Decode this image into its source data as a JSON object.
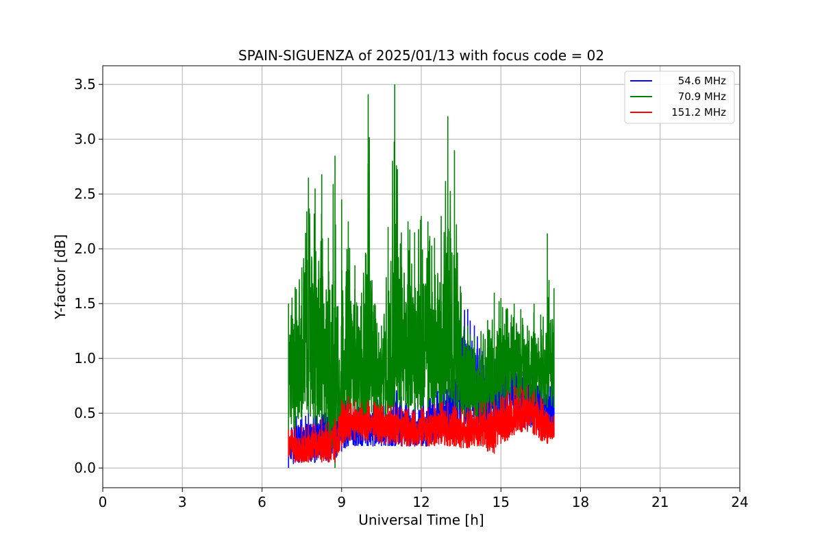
{
  "chart_data": {
    "type": "line",
    "title": "SPAIN-SIGUENZA of 2025/01/13 with focus code = 02",
    "xlabel": "Universal Time [h]",
    "ylabel": "Y-factor [dB]",
    "xlim": [
      0,
      24
    ],
    "ylim": [
      -0.18,
      3.67
    ],
    "xticks": [
      0,
      3,
      6,
      9,
      12,
      15,
      18,
      21,
      24
    ],
    "yticks": [
      0.0,
      0.5,
      1.0,
      1.5,
      2.0,
      2.5,
      3.0,
      3.5
    ],
    "xtick_labels": [
      "0",
      "3",
      "6",
      "9",
      "12",
      "15",
      "18",
      "21",
      "24"
    ],
    "ytick_labels": [
      "0.0",
      "0.5",
      "1.0",
      "1.5",
      "2.0",
      "2.5",
      "3.0",
      "3.5"
    ],
    "grid": true,
    "legend_position": "top-right",
    "series": [
      {
        "name": "54.6 MHz",
        "color": "#0000ff",
        "x": [
          7.0,
          7.25,
          7.5,
          7.75,
          8.0,
          8.25,
          8.5,
          8.75,
          9.0,
          9.25,
          9.5,
          9.75,
          10.0,
          10.25,
          10.5,
          10.75,
          11.0,
          11.25,
          11.5,
          11.75,
          12.0,
          12.25,
          12.5,
          12.75,
          13.0,
          13.25,
          13.5,
          13.75,
          14.0,
          14.25,
          14.5,
          14.75,
          15.0,
          15.25,
          15.5,
          15.75,
          16.0,
          16.25,
          16.5,
          16.75,
          17.0
        ],
        "y": [
          0.2,
          0.25,
          0.25,
          0.3,
          0.3,
          0.35,
          0.35,
          0.3,
          0.4,
          0.4,
          0.35,
          0.35,
          0.35,
          0.4,
          0.35,
          0.35,
          0.45,
          0.4,
          0.4,
          0.35,
          0.4,
          0.4,
          0.45,
          0.45,
          0.5,
          0.6,
          0.8,
          0.75,
          0.7,
          0.6,
          0.55,
          0.6,
          0.65,
          0.7,
          0.7,
          0.7,
          0.7,
          0.65,
          0.6,
          0.55,
          0.5
        ],
        "min": [
          0.0,
          0.05,
          0.05,
          0.05,
          0.05,
          0.1,
          0.05,
          0.05,
          0.15,
          0.2,
          0.2,
          0.2,
          0.2,
          0.2,
          0.2,
          0.2,
          0.2,
          0.2,
          0.2,
          0.2,
          0.2,
          0.2,
          0.25,
          0.25,
          0.25,
          0.25,
          0.3,
          0.3,
          0.3,
          0.3,
          0.3,
          0.3,
          0.35,
          0.35,
          0.35,
          0.35,
          0.35,
          0.35,
          0.3,
          0.3,
          0.3
        ],
        "max": [
          0.3,
          0.55,
          0.45,
          0.5,
          0.5,
          0.65,
          0.55,
          0.45,
          0.7,
          0.6,
          0.6,
          0.55,
          0.65,
          0.65,
          0.6,
          0.6,
          0.75,
          0.65,
          0.6,
          0.6,
          0.65,
          0.65,
          0.75,
          0.7,
          0.85,
          1.2,
          1.58,
          1.45,
          1.3,
          1.1,
          0.95,
          1.0,
          1.05,
          1.08,
          1.0,
          1.0,
          0.95,
          0.9,
          0.85,
          0.8,
          1.3
        ]
      },
      {
        "name": "70.9 MHz",
        "color": "#008000",
        "x": [
          7.0,
          7.25,
          7.5,
          7.75,
          8.0,
          8.25,
          8.5,
          8.75,
          9.0,
          9.25,
          9.5,
          9.75,
          10.0,
          10.25,
          10.5,
          10.75,
          11.0,
          11.25,
          11.5,
          11.75,
          12.0,
          12.25,
          12.5,
          12.75,
          13.0,
          13.25,
          13.5,
          13.75,
          14.0,
          14.25,
          14.5,
          14.75,
          15.0,
          15.25,
          15.5,
          15.75,
          16.0,
          16.25,
          16.5,
          16.75,
          17.0
        ],
        "y": [
          0.9,
          1.0,
          1.1,
          1.2,
          1.0,
          1.0,
          0.8,
          0.7,
          0.8,
          0.9,
          0.9,
          0.85,
          0.9,
          0.9,
          0.9,
          0.85,
          1.1,
          1.0,
          1.1,
          1.0,
          1.05,
          1.0,
          1.0,
          1.0,
          1.05,
          0.9,
          0.85,
          0.8,
          0.75,
          0.75,
          0.8,
          0.85,
          0.95,
          1.0,
          1.0,
          0.95,
          0.95,
          0.95,
          0.9,
          0.9,
          0.9
        ],
        "min": [
          0.3,
          0.35,
          0.45,
          0.5,
          0.4,
          0.3,
          0.2,
          0.0,
          0.3,
          0.45,
          0.45,
          0.4,
          0.45,
          0.45,
          0.45,
          0.4,
          0.55,
          0.55,
          0.55,
          0.5,
          0.55,
          0.55,
          0.55,
          0.5,
          0.6,
          0.5,
          0.5,
          0.45,
          0.45,
          0.45,
          0.5,
          0.5,
          0.5,
          0.6,
          0.6,
          0.55,
          0.55,
          0.55,
          0.55,
          0.55,
          0.55
        ],
        "max": [
          1.5,
          1.65,
          1.83,
          2.65,
          2.55,
          2.68,
          2.1,
          2.85,
          2.45,
          2.25,
          1.85,
          1.6,
          3.41,
          1.5,
          1.3,
          2.2,
          3.5,
          2.15,
          2.25,
          2.15,
          2.3,
          2.25,
          2.1,
          2.3,
          3.21,
          2.9,
          1.6,
          1.3,
          1.2,
          1.25,
          1.35,
          1.6,
          1.55,
          1.45,
          1.5,
          1.45,
          1.3,
          1.5,
          1.4,
          2.14,
          1.64
        ]
      },
      {
        "name": "151.2 MHz",
        "color": "#ff0000",
        "x": [
          7.0,
          7.25,
          7.5,
          7.75,
          8.0,
          8.25,
          8.5,
          8.75,
          9.0,
          9.25,
          9.5,
          9.75,
          10.0,
          10.25,
          10.5,
          10.75,
          11.0,
          11.25,
          11.5,
          11.75,
          12.0,
          12.25,
          12.5,
          12.75,
          13.0,
          13.25,
          13.5,
          13.75,
          14.0,
          14.25,
          14.5,
          14.75,
          15.0,
          15.25,
          15.5,
          15.75,
          16.0,
          16.25,
          16.5,
          16.75,
          17.0
        ],
        "y": [
          0.22,
          0.2,
          0.2,
          0.22,
          0.22,
          0.23,
          0.25,
          0.27,
          0.42,
          0.45,
          0.45,
          0.42,
          0.4,
          0.4,
          0.38,
          0.38,
          0.38,
          0.36,
          0.36,
          0.35,
          0.35,
          0.36,
          0.38,
          0.38,
          0.38,
          0.37,
          0.36,
          0.36,
          0.36,
          0.37,
          0.38,
          0.4,
          0.42,
          0.45,
          0.5,
          0.52,
          0.52,
          0.5,
          0.45,
          0.38,
          0.38
        ],
        "min": [
          0.1,
          0.05,
          0.05,
          0.05,
          0.08,
          0.05,
          0.05,
          0.05,
          0.2,
          0.25,
          0.25,
          0.25,
          0.25,
          0.25,
          0.22,
          0.22,
          0.22,
          0.2,
          0.2,
          0.2,
          0.2,
          0.2,
          0.2,
          0.22,
          0.2,
          0.2,
          0.18,
          0.18,
          0.2,
          0.2,
          0.15,
          0.13,
          0.22,
          0.25,
          0.3,
          0.33,
          0.33,
          0.3,
          0.25,
          0.22,
          0.28
        ],
        "max": [
          0.35,
          0.38,
          0.38,
          0.4,
          0.4,
          0.45,
          0.42,
          0.45,
          0.62,
          0.65,
          0.62,
          0.6,
          0.62,
          0.6,
          0.58,
          0.58,
          0.58,
          0.55,
          0.55,
          0.52,
          0.55,
          0.55,
          0.58,
          0.6,
          0.6,
          0.58,
          0.55,
          0.55,
          0.55,
          0.6,
          0.6,
          0.62,
          0.65,
          0.7,
          0.75,
          0.75,
          0.75,
          0.7,
          0.65,
          0.5,
          0.48
        ]
      }
    ]
  }
}
